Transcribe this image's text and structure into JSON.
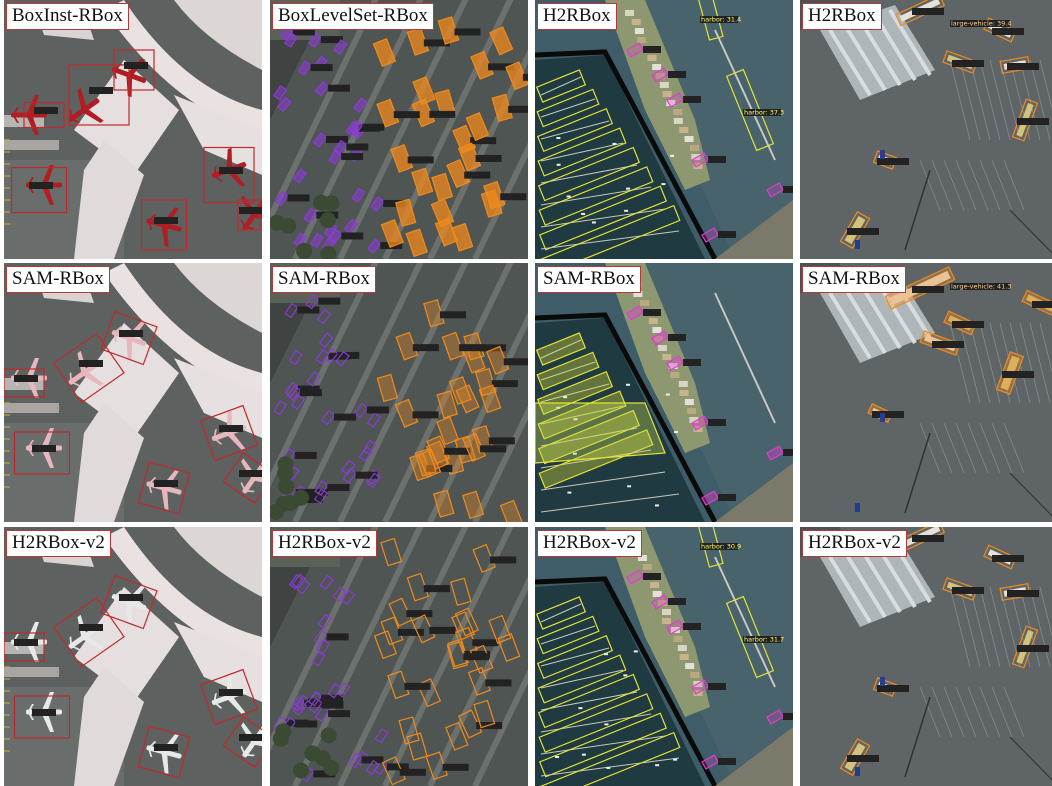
{
  "figure": {
    "rows": [
      {
        "labels": [
          "BoxInst-RBox",
          "BoxLevelSet-RBox",
          "H2RBox",
          "H2RBox"
        ]
      },
      {
        "labels": [
          "SAM-RBox",
          "SAM-RBox",
          "SAM-RBox",
          "SAM-RBox"
        ]
      },
      {
        "labels": [
          "H2RBox-v2",
          "H2RBox-v2",
          "H2RBox-v2",
          "H2RBox-v2"
        ]
      }
    ],
    "readable_annotations": {
      "harbor_top_1": "harbor: 31.4",
      "harbor_top_2": "harbor: 37.3",
      "vehicle_top": "large-vehicle: 39.4",
      "harbor_bot_1": "harbor: 30.9",
      "harbor_bot_2": "harbor: 31.7",
      "vehicle_mid": "large-vehicle: 41.3"
    }
  },
  "colors": {
    "airplane_box": "#c0292b",
    "small_vehicle": "#8a3bd6",
    "large_vehicle": "#f08a1c",
    "harbor": "#e3e238",
    "ship": "#e23bd1",
    "label_border": "#b23a3a"
  }
}
